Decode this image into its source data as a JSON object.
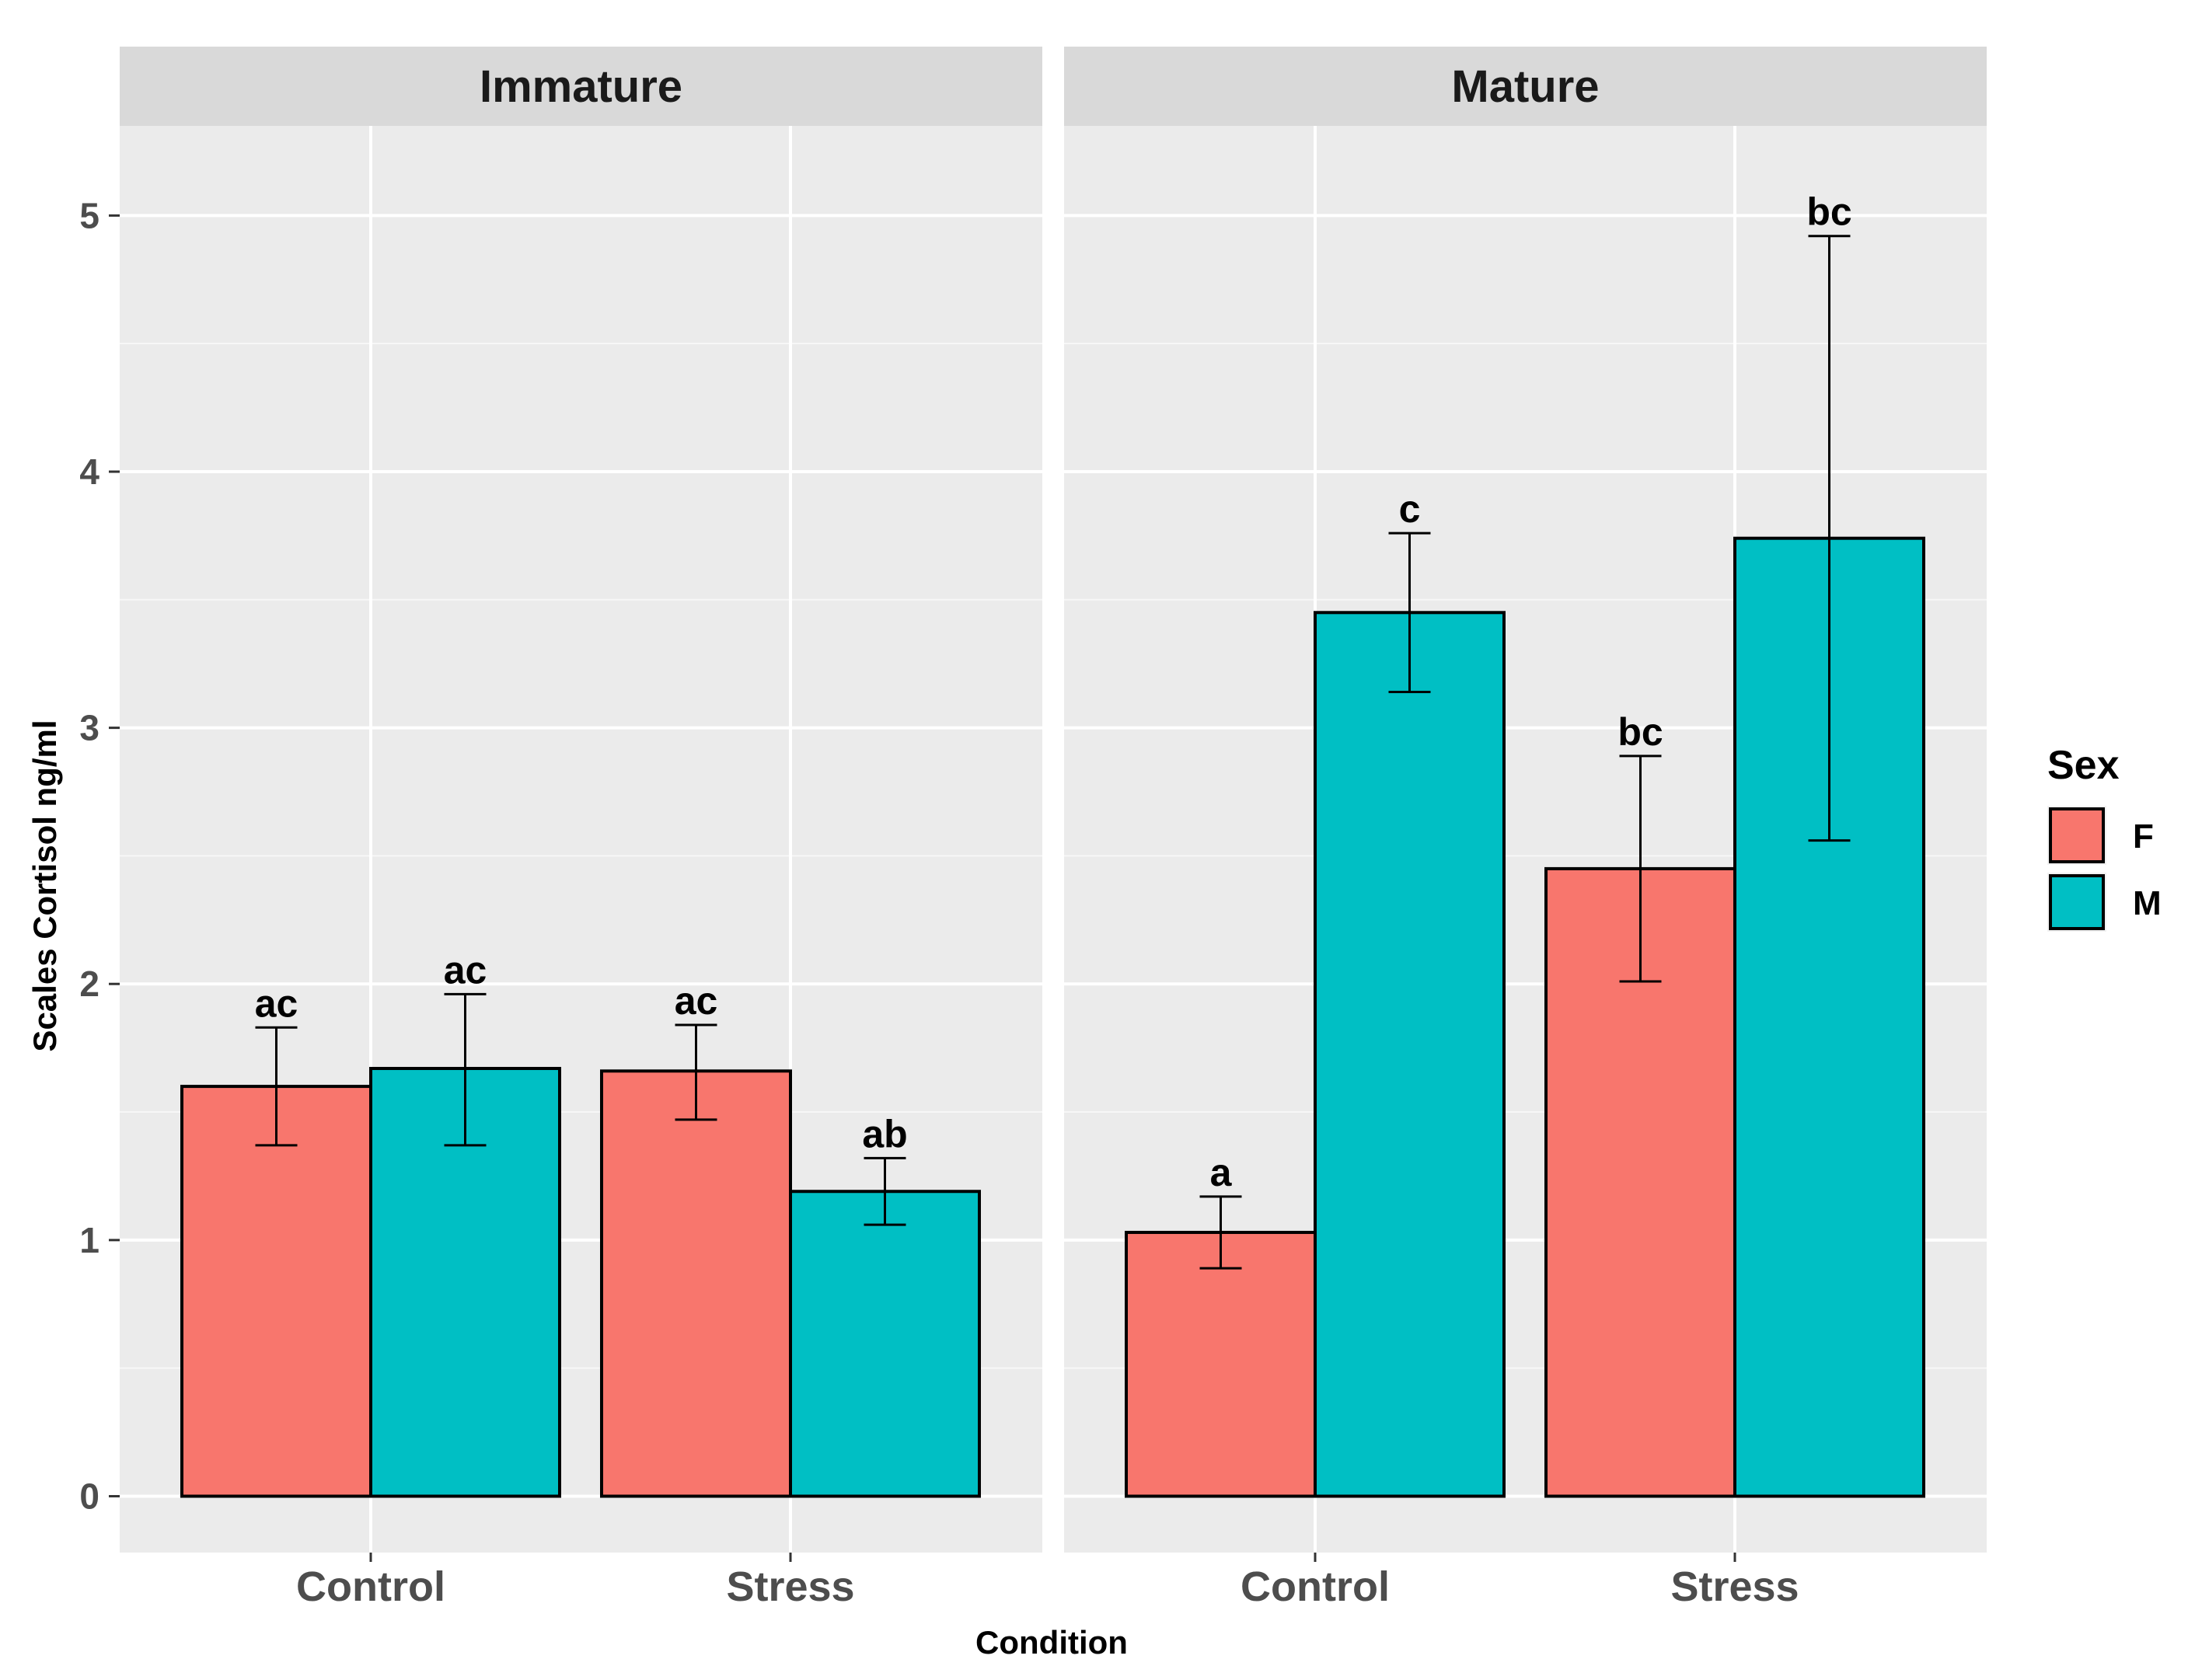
{
  "chart_data": {
    "type": "bar",
    "xlabel": "Condition",
    "ylabel": "Scales Cortisol ng/ml",
    "ylim": [
      -0.22,
      5.35
    ],
    "y_ticks": [
      0,
      1,
      2,
      3,
      4,
      5
    ],
    "categories": [
      "Control",
      "Stress"
    ],
    "legend": {
      "title": "Sex",
      "position": "right",
      "entries": [
        {
          "key": "F",
          "label": "F",
          "color": "#F8766D"
        },
        {
          "key": "M",
          "label": "M",
          "color": "#00BFC4"
        }
      ]
    },
    "panels": [
      {
        "name": "Immature",
        "bars": [
          {
            "category": "Control",
            "sex": "F",
            "value": 1.6,
            "err_low": 1.37,
            "err_high": 1.83,
            "label": "ac"
          },
          {
            "category": "Control",
            "sex": "M",
            "value": 1.67,
            "err_low": 1.37,
            "err_high": 1.96,
            "label": "ac"
          },
          {
            "category": "Stress",
            "sex": "F",
            "value": 1.66,
            "err_low": 1.47,
            "err_high": 1.84,
            "label": "ac"
          },
          {
            "category": "Stress",
            "sex": "M",
            "value": 1.19,
            "err_low": 1.06,
            "err_high": 1.32,
            "label": "ab"
          }
        ]
      },
      {
        "name": "Mature",
        "bars": [
          {
            "category": "Control",
            "sex": "F",
            "value": 1.03,
            "err_low": 0.89,
            "err_high": 1.17,
            "label": "a"
          },
          {
            "category": "Control",
            "sex": "M",
            "value": 3.45,
            "err_low": 3.14,
            "err_high": 3.76,
            "label": "c"
          },
          {
            "category": "Stress",
            "sex": "F",
            "value": 2.45,
            "err_low": 2.01,
            "err_high": 2.89,
            "label": "bc"
          },
          {
            "category": "Stress",
            "sex": "M",
            "value": 3.74,
            "err_low": 2.56,
            "err_high": 4.92,
            "label": "bc"
          }
        ]
      }
    ]
  }
}
